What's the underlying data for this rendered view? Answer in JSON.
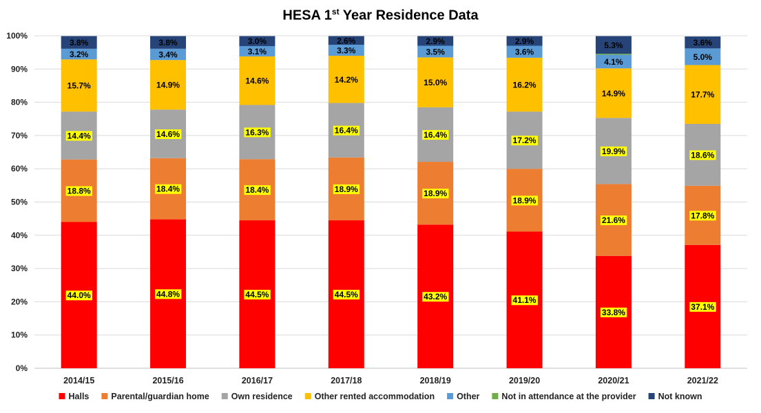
{
  "chart_data": {
    "type": "bar",
    "stacked": true,
    "title": "HESA 1st Year Residence Data",
    "title_main": "HESA 1",
    "title_sup": "st",
    "title_rest": " Year Residence Data",
    "categories": [
      "2014/15",
      "2015/16",
      "2016/17",
      "2017/18",
      "2018/19",
      "2019/20",
      "2020/21",
      "2021/22"
    ],
    "ylim": [
      0,
      100
    ],
    "y_ticks": [
      "0%",
      "10%",
      "20%",
      "30%",
      "40%",
      "50%",
      "60%",
      "70%",
      "80%",
      "90%",
      "100%"
    ],
    "grid": true,
    "legend_position": "bottom",
    "series": [
      {
        "name": "Halls",
        "color": "#FF0000",
        "values": [
          44.0,
          44.8,
          44.5,
          44.5,
          43.2,
          41.1,
          33.8,
          37.1
        ],
        "labels": [
          "44.0%",
          "44.8%",
          "44.5%",
          "44.5%",
          "43.2%",
          "41.1%",
          "33.8%",
          "37.1%"
        ],
        "highlight_labels": true
      },
      {
        "name": "Parental/guardian home",
        "color": "#ED7D31",
        "values": [
          18.8,
          18.4,
          18.4,
          18.9,
          18.9,
          18.9,
          21.6,
          17.8
        ],
        "labels": [
          "18.8%",
          "18.4%",
          "18.4%",
          "18.9%",
          "18.9%",
          "18.9%",
          "21.6%",
          "17.8%"
        ],
        "highlight_labels": true
      },
      {
        "name": "Own residence",
        "color": "#A5A5A5",
        "values": [
          14.4,
          14.6,
          16.3,
          16.4,
          16.4,
          17.2,
          19.9,
          18.6
        ],
        "labels": [
          "14.4%",
          "14.6%",
          "16.3%",
          "16.4%",
          "16.4%",
          "17.2%",
          "19.9%",
          "18.6%"
        ],
        "highlight_labels": true
      },
      {
        "name": "Other rented accommodation",
        "color": "#FFC000",
        "values": [
          15.7,
          14.9,
          14.6,
          14.2,
          15.0,
          16.2,
          14.9,
          17.7
        ],
        "labels": [
          "15.7%",
          "14.9%",
          "14.6%",
          "14.2%",
          "15.0%",
          "16.2%",
          "14.9%",
          "17.7%"
        ],
        "highlight_labels": false
      },
      {
        "name": "Other",
        "color": "#5B9BD5",
        "values": [
          3.2,
          3.4,
          3.1,
          3.3,
          3.5,
          3.6,
          4.1,
          5.0
        ],
        "labels": [
          "3.2%",
          "3.4%",
          "3.1%",
          "3.3%",
          "3.5%",
          "3.6%",
          "4.1%",
          "5.0%"
        ],
        "highlight_labels": false
      },
      {
        "name": "Not in attendance at the provider",
        "color": "#70AD47",
        "values": [
          0.0,
          0.0,
          0.0,
          0.0,
          0.0,
          0.0,
          0.3,
          0.0
        ],
        "labels": [],
        "highlight_labels": false
      },
      {
        "name": "Not known",
        "color": "#264478",
        "values": [
          3.8,
          3.8,
          3.0,
          2.6,
          2.9,
          2.9,
          5.3,
          3.6
        ],
        "labels": [
          "3.8%",
          "3.8%",
          "3.0%",
          "2.6%",
          "2.9%",
          "2.9%",
          "5.3%",
          "3.6%"
        ],
        "highlight_labels": false,
        "label_color": "#FFFFFF"
      }
    ]
  }
}
